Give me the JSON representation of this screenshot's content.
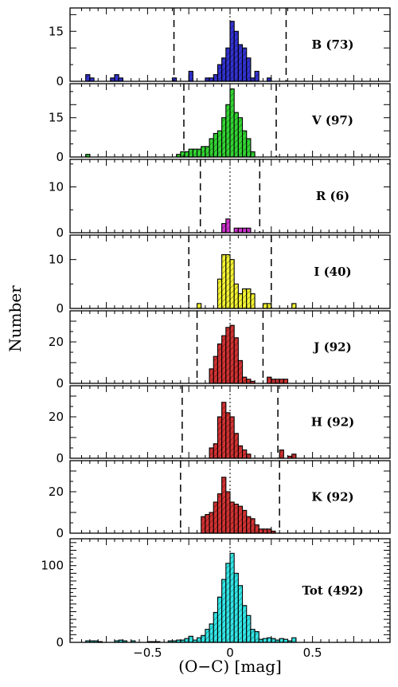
{
  "chart_data": {
    "type": "bar",
    "subtype": "stacked-panel histograms",
    "xlabel": "(O−C)  [mag]",
    "ylabel": "Number",
    "xlim": [
      -0.97,
      0.97
    ],
    "x_ticks": [
      -0.5,
      0,
      0.5
    ],
    "x_tick_labels": [
      "−0.5",
      "0",
      "0.5"
    ],
    "bin_width": 0.025,
    "panels": [
      {
        "id": "B",
        "label": "B (73)",
        "color": "#3232d2",
        "ylim": [
          0,
          22
        ],
        "y_ticks": [
          0,
          15
        ],
        "dashed_lines": [
          -0.34,
          0.34
        ],
        "bins": [
          [
            -0.875,
            2
          ],
          [
            -0.85,
            1
          ],
          [
            -0.725,
            1
          ],
          [
            -0.7,
            2
          ],
          [
            -0.675,
            1
          ],
          [
            -0.35,
            1
          ],
          [
            -0.25,
            3
          ],
          [
            -0.15,
            1
          ],
          [
            -0.125,
            1
          ],
          [
            -0.1,
            2
          ],
          [
            -0.075,
            5
          ],
          [
            -0.05,
            7
          ],
          [
            -0.025,
            10
          ],
          [
            0.0,
            18
          ],
          [
            0.025,
            15
          ],
          [
            0.05,
            11
          ],
          [
            0.075,
            10
          ],
          [
            0.1,
            7
          ],
          [
            0.125,
            1
          ],
          [
            0.15,
            3
          ],
          [
            0.225,
            1
          ]
        ]
      },
      {
        "id": "V",
        "label": "V (97)",
        "color": "#33d433",
        "ylim": [
          0,
          28
        ],
        "y_ticks": [
          0,
          15
        ],
        "dashed_lines": [
          -0.28,
          0.28
        ],
        "bins": [
          [
            -0.875,
            1
          ],
          [
            -0.325,
            1
          ],
          [
            -0.3,
            2
          ],
          [
            -0.275,
            2
          ],
          [
            -0.25,
            3
          ],
          [
            -0.225,
            3
          ],
          [
            -0.2,
            3
          ],
          [
            -0.175,
            4
          ],
          [
            -0.15,
            4
          ],
          [
            -0.125,
            7
          ],
          [
            -0.1,
            9
          ],
          [
            -0.075,
            10
          ],
          [
            -0.05,
            15
          ],
          [
            -0.025,
            20
          ],
          [
            0.0,
            26
          ],
          [
            0.025,
            17
          ],
          [
            0.05,
            15
          ],
          [
            0.075,
            10
          ],
          [
            0.1,
            7
          ],
          [
            0.125,
            2
          ]
        ]
      },
      {
        "id": "R",
        "label": "R (6)",
        "color": "#d233d2",
        "ylim": [
          0,
          16
        ],
        "y_ticks": [
          0,
          10
        ],
        "dashed_lines": [
          -0.18,
          0.18
        ],
        "bins": [
          [
            -0.05,
            2
          ],
          [
            -0.025,
            3
          ],
          [
            0.025,
            1
          ],
          [
            0.05,
            1
          ],
          [
            0.075,
            1
          ],
          [
            0.1,
            1
          ]
        ]
      },
      {
        "id": "I",
        "label": "I (40)",
        "color": "#f4f433",
        "ylim": [
          0,
          15
        ],
        "y_ticks": [
          0,
          10
        ],
        "dashed_lines": [
          -0.25,
          0.25
        ],
        "bins": [
          [
            -0.2,
            1
          ],
          [
            -0.075,
            6
          ],
          [
            -0.05,
            11
          ],
          [
            -0.025,
            11
          ],
          [
            0.0,
            10
          ],
          [
            0.025,
            5
          ],
          [
            0.05,
            3
          ],
          [
            0.075,
            4
          ],
          [
            0.1,
            4
          ],
          [
            0.125,
            3
          ],
          [
            0.2,
            1
          ],
          [
            0.225,
            1
          ],
          [
            0.375,
            1
          ]
        ]
      },
      {
        "id": "J",
        "label": "J (92)",
        "color": "#d23232",
        "ylim": [
          0,
          35
        ],
        "y_ticks": [
          0,
          20
        ],
        "dashed_lines": [
          -0.2,
          0.2
        ],
        "bins": [
          [
            -0.125,
            7
          ],
          [
            -0.1,
            13
          ],
          [
            -0.075,
            19
          ],
          [
            -0.05,
            23
          ],
          [
            -0.025,
            27
          ],
          [
            0.0,
            28
          ],
          [
            0.025,
            22
          ],
          [
            0.05,
            11
          ],
          [
            0.075,
            3
          ],
          [
            0.1,
            2
          ],
          [
            0.125,
            1
          ],
          [
            0.225,
            3
          ],
          [
            0.25,
            2
          ],
          [
            0.275,
            2
          ],
          [
            0.3,
            2
          ],
          [
            0.325,
            2
          ]
        ]
      },
      {
        "id": "H",
        "label": "H (92)",
        "color": "#d23232",
        "ylim": [
          0,
          35
        ],
        "y_ticks": [
          0,
          20
        ],
        "dashed_lines": [
          -0.29,
          0.29
        ],
        "bins": [
          [
            -0.125,
            5
          ],
          [
            -0.1,
            7
          ],
          [
            -0.075,
            20
          ],
          [
            -0.05,
            27
          ],
          [
            -0.025,
            22
          ],
          [
            0.0,
            20
          ],
          [
            0.025,
            12
          ],
          [
            0.05,
            6
          ],
          [
            0.075,
            4
          ],
          [
            0.1,
            2
          ],
          [
            0.3,
            4
          ],
          [
            0.325,
            0
          ],
          [
            0.35,
            1
          ],
          [
            0.375,
            2
          ]
        ]
      },
      {
        "id": "K",
        "label": "K (92)",
        "color": "#d23232",
        "ylim": [
          0,
          35
        ],
        "y_ticks": [
          0,
          20
        ],
        "dashed_lines": [
          -0.3,
          0.3
        ],
        "bins": [
          [
            -0.175,
            8
          ],
          [
            -0.15,
            9
          ],
          [
            -0.125,
            10
          ],
          [
            -0.1,
            15
          ],
          [
            -0.075,
            19
          ],
          [
            -0.05,
            27
          ],
          [
            -0.025,
            20
          ],
          [
            0.0,
            15
          ],
          [
            0.025,
            14
          ],
          [
            0.05,
            13
          ],
          [
            0.075,
            11
          ],
          [
            0.1,
            8
          ],
          [
            0.125,
            7
          ],
          [
            0.15,
            4
          ],
          [
            0.175,
            2
          ],
          [
            0.2,
            2
          ],
          [
            0.225,
            2
          ],
          [
            0.25,
            1
          ]
        ]
      },
      {
        "id": "Tot",
        "label": "Tot (492)",
        "color": "#33e6e6",
        "ylim": [
          0,
          135
        ],
        "y_ticks": [
          0,
          100
        ],
        "dashed_lines": [],
        "bins": [
          [
            -0.875,
            2
          ],
          [
            -0.85,
            2
          ],
          [
            -0.825,
            2
          ],
          [
            -0.8,
            1
          ],
          [
            -0.7,
            2
          ],
          [
            -0.675,
            3
          ],
          [
            -0.65,
            2
          ],
          [
            -0.6,
            2
          ],
          [
            -0.5,
            1
          ],
          [
            -0.475,
            1
          ],
          [
            -0.45,
            1
          ],
          [
            -0.375,
            2
          ],
          [
            -0.35,
            2
          ],
          [
            -0.325,
            3
          ],
          [
            -0.3,
            3
          ],
          [
            -0.275,
            5
          ],
          [
            -0.25,
            8
          ],
          [
            -0.225,
            3
          ],
          [
            -0.2,
            6
          ],
          [
            -0.175,
            9
          ],
          [
            -0.15,
            17
          ],
          [
            -0.125,
            24
          ],
          [
            -0.1,
            39
          ],
          [
            -0.075,
            59
          ],
          [
            -0.05,
            82
          ],
          [
            -0.025,
            103
          ],
          [
            0.0,
            116
          ],
          [
            0.025,
            90
          ],
          [
            0.05,
            74
          ],
          [
            0.075,
            48
          ],
          [
            0.1,
            35
          ],
          [
            0.125,
            17
          ],
          [
            0.15,
            14
          ],
          [
            0.175,
            4
          ],
          [
            0.2,
            5
          ],
          [
            0.225,
            6
          ],
          [
            0.25,
            5
          ],
          [
            0.275,
            3
          ],
          [
            0.3,
            5
          ],
          [
            0.325,
            4
          ],
          [
            0.35,
            2
          ],
          [
            0.375,
            6
          ]
        ]
      }
    ]
  }
}
